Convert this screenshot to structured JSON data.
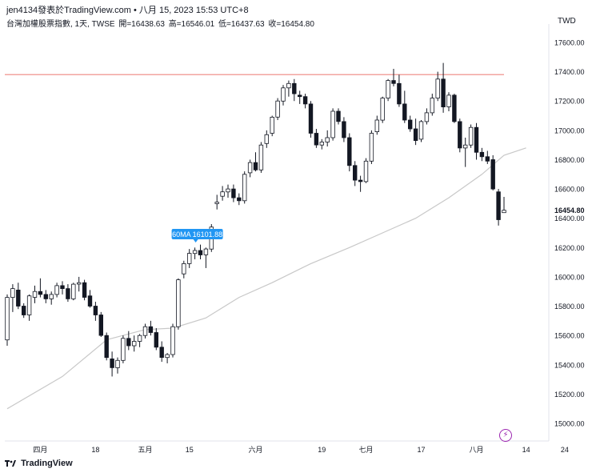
{
  "header": {
    "title": "jen4134發表於TradingView.com",
    "separator": "•",
    "timestamp": "八月 15, 2023 15:53 UTC+8"
  },
  "ohlc": {
    "symbol_name": "台灣加權股票指數, 1天, TWSE",
    "open": "開=16438.63",
    "high": "高=16546.01",
    "low": "低=16437.63",
    "close": "收=16454.80"
  },
  "currency": "TWD",
  "footer": {
    "brand": "TradingView"
  },
  "colors": {
    "up": "#ffffff",
    "down": "#131722",
    "ma": "#c8c8c8",
    "hline": "#f2a49f",
    "price_tag": "#131722",
    "ma_label": "#2196f3",
    "accent": "#9c27b0"
  },
  "chart_data": {
    "type": "candlestick",
    "ylim": [
      14900,
      17700
    ],
    "yticks": [
      "15000.00",
      "15200.00",
      "15400.00",
      "15600.00",
      "15800.00",
      "16000.00",
      "16200.00",
      "16400.00",
      "16600.00",
      "16800.00",
      "17000.00",
      "17200.00",
      "17400.00",
      "17600.00"
    ],
    "xticks": [
      {
        "label": "四月",
        "i": 6
      },
      {
        "label": "18",
        "i": 16
      },
      {
        "label": "五月",
        "i": 25
      },
      {
        "label": "15",
        "i": 33
      },
      {
        "label": "六月",
        "i": 45
      },
      {
        "label": "19",
        "i": 57
      },
      {
        "label": "七月",
        "i": 65
      },
      {
        "label": "17",
        "i": 75
      },
      {
        "label": "八月",
        "i": 85
      },
      {
        "label": "14",
        "i": 94
      },
      {
        "label": "24",
        "i": 101
      }
    ],
    "last_price": "16454.80",
    "hline": 17380,
    "hline_end": 90,
    "ma_label": "60MA 16101.88",
    "ma_label_i": 34,
    "ma_name": "60MA",
    "candles": [
      [
        15570,
        15880,
        15530,
        15860
      ],
      [
        15860,
        15950,
        15760,
        15920
      ],
      [
        15910,
        15960,
        15780,
        15800
      ],
      [
        15800,
        15820,
        15720,
        15740
      ],
      [
        15740,
        15880,
        15700,
        15870
      ],
      [
        15860,
        15940,
        15820,
        15900
      ],
      [
        15900,
        15990,
        15860,
        15880
      ],
      [
        15880,
        15910,
        15820,
        15850
      ],
      [
        15850,
        15900,
        15810,
        15880
      ],
      [
        15880,
        15960,
        15860,
        15940
      ],
      [
        15940,
        15970,
        15880,
        15920
      ],
      [
        15920,
        15950,
        15830,
        15850
      ],
      [
        15850,
        15960,
        15840,
        15950
      ],
      [
        15950,
        16000,
        15900,
        15960
      ],
      [
        15960,
        15980,
        15840,
        15860
      ],
      [
        15870,
        15910,
        15790,
        15800
      ],
      [
        15800,
        15830,
        15700,
        15740
      ],
      [
        15740,
        15760,
        15590,
        15600
      ],
      [
        15600,
        15620,
        15430,
        15450
      ],
      [
        15440,
        15490,
        15320,
        15380
      ],
      [
        15380,
        15450,
        15340,
        15430
      ],
      [
        15430,
        15600,
        15410,
        15580
      ],
      [
        15580,
        15630,
        15500,
        15530
      ],
      [
        15530,
        15600,
        15490,
        15560
      ],
      [
        15560,
        15610,
        15520,
        15600
      ],
      [
        15600,
        15680,
        15580,
        15660
      ],
      [
        15660,
        15700,
        15600,
        15620
      ],
      [
        15620,
        15650,
        15500,
        15520
      ],
      [
        15520,
        15560,
        15420,
        15450
      ],
      [
        15450,
        15480,
        15410,
        15470
      ],
      [
        15470,
        15680,
        15450,
        15660
      ],
      [
        15660,
        15990,
        15640,
        15980
      ],
      [
        16020,
        16110,
        15990,
        16090
      ],
      [
        16090,
        16190,
        16060,
        16160
      ],
      [
        16160,
        16200,
        16120,
        16180
      ],
      [
        16180,
        16220,
        16120,
        16150
      ],
      [
        16150,
        16200,
        16060,
        16190
      ],
      [
        16190,
        16360,
        16170,
        16340
      ],
      [
        16500,
        16560,
        16460,
        16510
      ],
      [
        16550,
        16620,
        16520,
        16580
      ],
      [
        16580,
        16630,
        16540,
        16600
      ],
      [
        16600,
        16630,
        16510,
        16540
      ],
      [
        16540,
        16570,
        16490,
        16520
      ],
      [
        16520,
        16720,
        16500,
        16700
      ],
      [
        16710,
        16800,
        16680,
        16780
      ],
      [
        16780,
        16850,
        16720,
        16730
      ],
      [
        16730,
        16920,
        16710,
        16900
      ],
      [
        16910,
        17000,
        16880,
        16970
      ],
      [
        16980,
        17100,
        16960,
        17090
      ],
      [
        17090,
        17220,
        17070,
        17200
      ],
      [
        17200,
        17310,
        17170,
        17290
      ],
      [
        17290,
        17340,
        17230,
        17320
      ],
      [
        17320,
        17350,
        17200,
        17250
      ],
      [
        17240,
        17270,
        17180,
        17230
      ],
      [
        17230,
        17250,
        17150,
        17180
      ],
      [
        17180,
        17200,
        16950,
        16980
      ],
      [
        16980,
        17010,
        16880,
        16900
      ],
      [
        16900,
        16940,
        16870,
        16920
      ],
      [
        16920,
        17000,
        16890,
        16950
      ],
      [
        16950,
        17150,
        16930,
        17130
      ],
      [
        17130,
        17150,
        17040,
        17060
      ],
      [
        17060,
        17090,
        16920,
        16950
      ],
      [
        16950,
        16980,
        16720,
        16760
      ],
      [
        16760,
        16790,
        16620,
        16660
      ],
      [
        16660,
        16690,
        16580,
        16650
      ],
      [
        16650,
        16810,
        16640,
        16790
      ],
      [
        16790,
        17000,
        16770,
        16980
      ],
      [
        16990,
        17100,
        16970,
        17070
      ],
      [
        17070,
        17230,
        17050,
        17220
      ],
      [
        17220,
        17350,
        17200,
        17340
      ],
      [
        17340,
        17420,
        17300,
        17320
      ],
      [
        17320,
        17380,
        17160,
        17180
      ],
      [
        17180,
        17270,
        17050,
        17070
      ],
      [
        17070,
        17100,
        16990,
        17010
      ],
      [
        17010,
        17080,
        16900,
        16930
      ],
      [
        16940,
        17070,
        16920,
        17060
      ],
      [
        17060,
        17150,
        17040,
        17120
      ],
      [
        17120,
        17250,
        17100,
        17220
      ],
      [
        17220,
        17400,
        17200,
        17350
      ],
      [
        17350,
        17460,
        17120,
        17160
      ],
      [
        17160,
        17260,
        17130,
        17240
      ],
      [
        17240,
        17250,
        17050,
        17060
      ],
      [
        17060,
        17080,
        16850,
        16880
      ],
      [
        16880,
        16950,
        16750,
        16900
      ],
      [
        16900,
        17040,
        16880,
        17020
      ],
      [
        17020,
        17050,
        16800,
        16850
      ],
      [
        16850,
        16880,
        16790,
        16820
      ],
      [
        16820,
        16860,
        16770,
        16790
      ],
      [
        16800,
        16830,
        16590,
        16600
      ],
      [
        16580,
        16600,
        16350,
        16390
      ],
      [
        16438.63,
        16546.01,
        16437.63,
        16454.8
      ]
    ],
    "ma": [
      [
        0,
        15100
      ],
      [
        10,
        15320
      ],
      [
        18,
        15570
      ],
      [
        25,
        15640
      ],
      [
        30,
        15650
      ],
      [
        36,
        15720
      ],
      [
        42,
        15860
      ],
      [
        48,
        15960
      ],
      [
        55,
        16090
      ],
      [
        62,
        16200
      ],
      [
        68,
        16300
      ],
      [
        74,
        16400
      ],
      [
        80,
        16540
      ],
      [
        86,
        16700
      ],
      [
        90,
        16830
      ],
      [
        94,
        16880
      ]
    ]
  }
}
